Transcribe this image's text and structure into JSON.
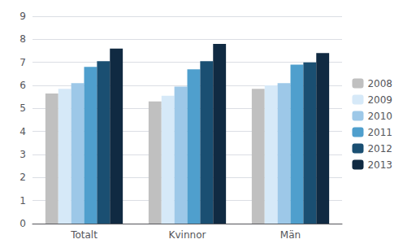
{
  "chart_data": {
    "type": "bar",
    "categories": [
      "Totalt",
      "Kvinnor",
      "Män"
    ],
    "series": [
      {
        "name": "2008",
        "color": "#c0c0c0",
        "values": [
          5.65,
          5.3,
          5.85
        ]
      },
      {
        "name": "2009",
        "color": "#d6e9f8",
        "values": [
          5.85,
          5.55,
          6.0
        ]
      },
      {
        "name": "2010",
        "color": "#9dc8e8",
        "values": [
          6.1,
          5.95,
          6.1
        ]
      },
      {
        "name": "2011",
        "color": "#4f9fcd",
        "values": [
          6.8,
          6.7,
          6.9
        ]
      },
      {
        "name": "2012",
        "color": "#1a4f72",
        "values": [
          7.05,
          7.05,
          7.0
        ]
      },
      {
        "name": "2013",
        "color": "#102a42",
        "values": [
          7.6,
          7.8,
          7.4
        ]
      }
    ],
    "ylim": [
      0,
      9
    ],
    "yticks": [
      0,
      1,
      2,
      3,
      4,
      5,
      6,
      7,
      8,
      9
    ],
    "grid": true,
    "legend": "right"
  }
}
